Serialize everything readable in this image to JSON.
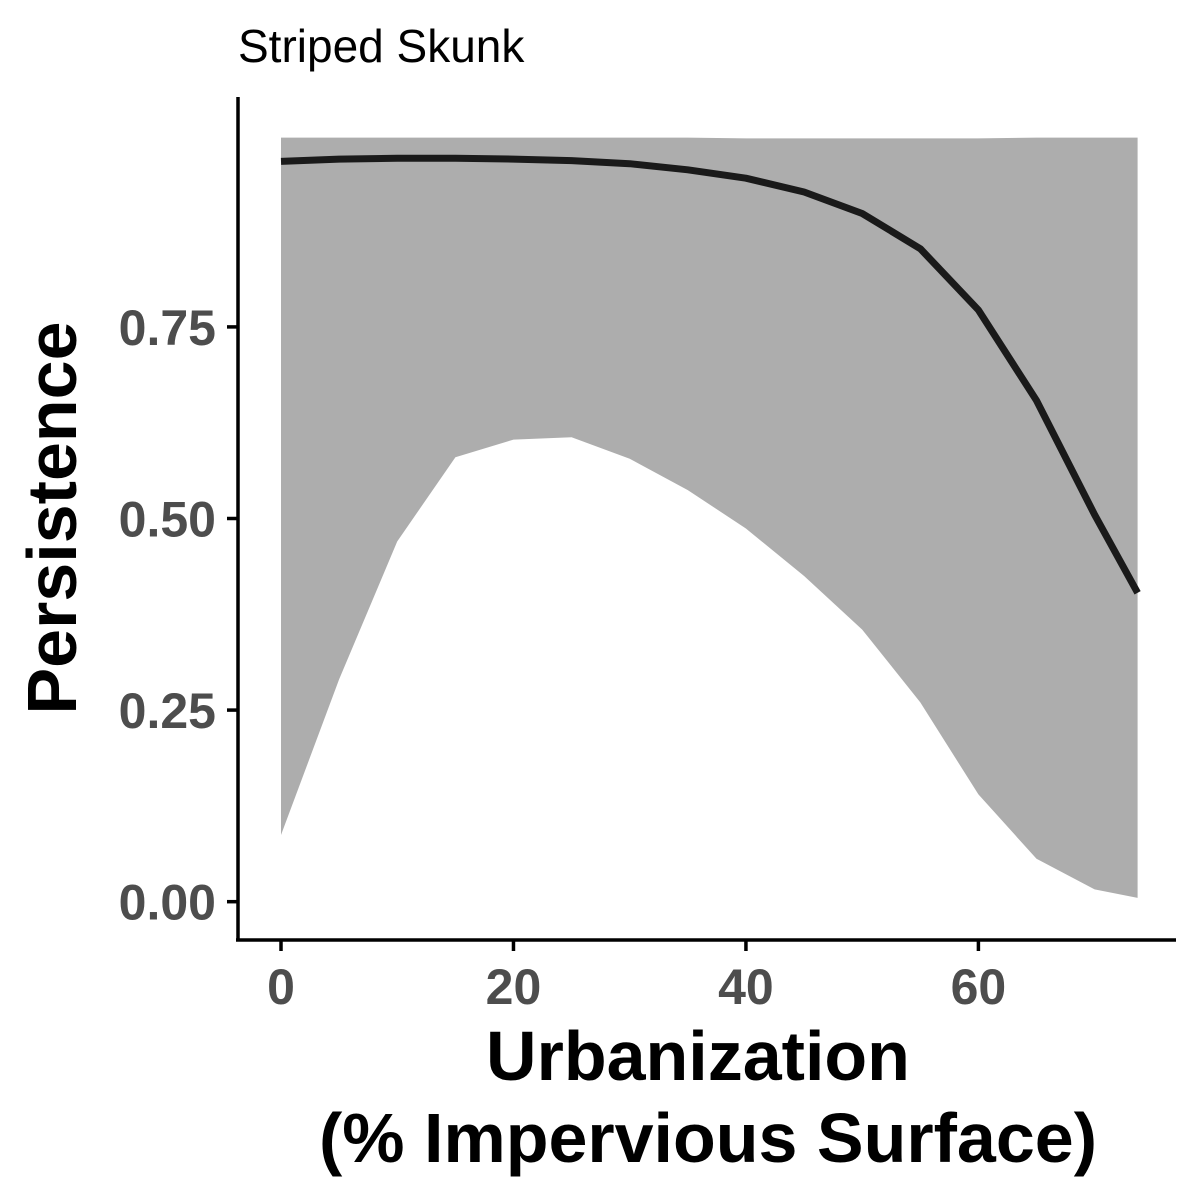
{
  "chart_data": {
    "type": "line",
    "title": "Striped Skunk",
    "xlabel_lines": [
      "Urbanization",
      "(% Impervious Surface)"
    ],
    "ylabel": "Persistence",
    "xlim": [
      -3.7,
      77
    ],
    "ylim": [
      -0.05,
      1.05
    ],
    "x_ticks": [
      0,
      20,
      40,
      60
    ],
    "x_tick_labels": [
      "0",
      "20",
      "40",
      "60"
    ],
    "y_ticks": [
      0,
      0.25,
      0.5,
      0.75
    ],
    "y_tick_labels": [
      "0.00",
      "0.25",
      "0.50",
      "0.75"
    ],
    "grid": false,
    "legend": "none",
    "colors": {
      "line": "#1a1a1a",
      "ribbon": "#adadad",
      "axis": "#000000",
      "tick_text": "#4d4d4d"
    },
    "series": [
      {
        "x": [
          0,
          5,
          10,
          15,
          20,
          25,
          30,
          35,
          40,
          45,
          50,
          55,
          60,
          65,
          70,
          73.7
        ],
        "values": [
          0.966,
          0.969,
          0.97,
          0.97,
          0.969,
          0.967,
          0.963,
          0.955,
          0.944,
          0.926,
          0.898,
          0.852,
          0.772,
          0.654,
          0.505,
          0.403
        ],
        "lower": [
          0.087,
          0.29,
          0.47,
          0.58,
          0.603,
          0.606,
          0.578,
          0.537,
          0.487,
          0.425,
          0.355,
          0.26,
          0.14,
          0.056,
          0.016,
          0.005
        ],
        "upper": [
          0.997,
          0.997,
          0.997,
          0.997,
          0.997,
          0.997,
          0.997,
          0.997,
          0.996,
          0.996,
          0.996,
          0.996,
          0.996,
          0.997,
          0.997,
          0.997
        ]
      }
    ]
  }
}
